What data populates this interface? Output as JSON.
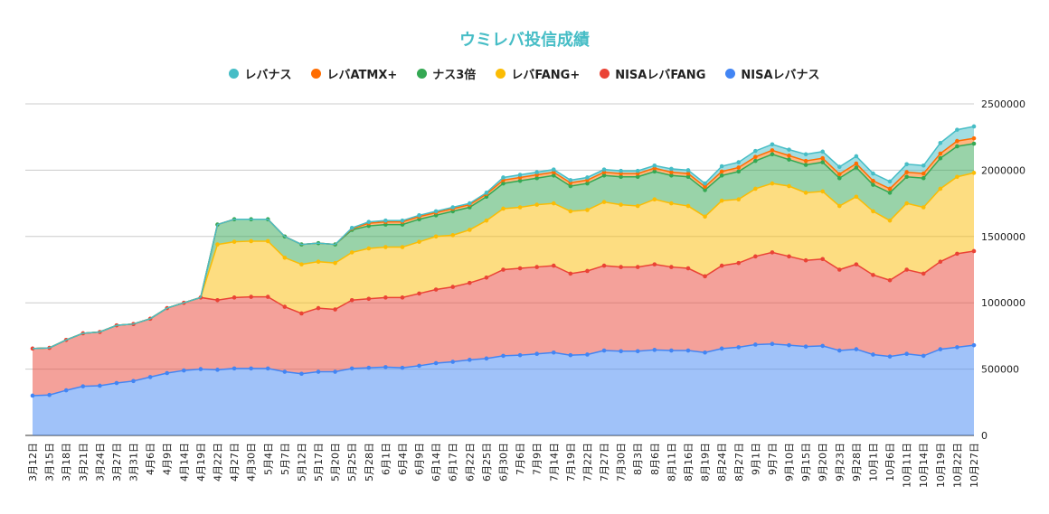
{
  "chart_data": {
    "type": "area",
    "stacked": true,
    "title": "ウミレバ投信成績",
    "legend_position": "top",
    "grid": true,
    "ylim": [
      0,
      2500000
    ],
    "yticks": [
      0,
      500000,
      1000000,
      1500000,
      2000000,
      2500000
    ],
    "ytick_labels": [
      "0",
      "500000",
      "1000000",
      "1500000",
      "2000000",
      "2500000"
    ],
    "categories": [
      "3月12日",
      "3月15日",
      "3月18日",
      "3月21日",
      "3月24日",
      "3月27日",
      "3月31日",
      "4月6日",
      "4月9日",
      "4月14日",
      "4月19日",
      "4月22日",
      "4月27日",
      "4月30日",
      "5月4日",
      "5月7日",
      "5月12日",
      "5月17日",
      "5月20日",
      "5月25日",
      "5月28日",
      "6月1日",
      "6月4日",
      "6月9日",
      "6月14日",
      "6月17日",
      "6月22日",
      "6月25日",
      "6月30日",
      "7月6日",
      "7月9日",
      "7月14日",
      "7月19日",
      "7月22日",
      "7月27日",
      "7月30日",
      "8月3日",
      "8月6日",
      "8月11日",
      "8月16日",
      "8月19日",
      "8月24日",
      "8月27日",
      "9月1日",
      "9月7日",
      "9月10日",
      "9月15日",
      "9月20日",
      "9月23日",
      "9月28日",
      "10月1日",
      "10月6日",
      "10月11日",
      "10月14日",
      "10月19日",
      "10月22日",
      "10月27日"
    ],
    "series": [
      {
        "name": "NISAレバナス",
        "color": "#4285f4",
        "values": [
          300000,
          305000,
          340000,
          370000,
          375000,
          395000,
          410000,
          440000,
          470000,
          490000,
          500000,
          495000,
          505000,
          505000,
          505000,
          480000,
          465000,
          480000,
          480000,
          505000,
          510000,
          515000,
          510000,
          525000,
          545000,
          555000,
          570000,
          580000,
          600000,
          605000,
          615000,
          625000,
          605000,
          610000,
          640000,
          635000,
          635000,
          645000,
          640000,
          640000,
          625000,
          655000,
          665000,
          685000,
          690000,
          680000,
          670000,
          675000,
          640000,
          650000,
          610000,
          595000,
          615000,
          600000,
          650000,
          665000,
          680000
        ]
      },
      {
        "name": "NISAレバFANG",
        "color": "#ea4335",
        "values": [
          355000,
          355000,
          380000,
          400000,
          405000,
          435000,
          430000,
          440000,
          490000,
          510000,
          540000,
          525000,
          535000,
          540000,
          540000,
          490000,
          455000,
          480000,
          470000,
          515000,
          520000,
          525000,
          530000,
          545000,
          555000,
          565000,
          580000,
          610000,
          650000,
          655000,
          655000,
          655000,
          615000,
          630000,
          640000,
          635000,
          635000,
          645000,
          630000,
          620000,
          575000,
          625000,
          635000,
          665000,
          690000,
          670000,
          650000,
          655000,
          610000,
          640000,
          600000,
          575000,
          635000,
          620000,
          660000,
          705000,
          710000
        ]
      },
      {
        "name": "レバFANG+",
        "color": "#fbbc04",
        "values": [
          0,
          0,
          0,
          0,
          0,
          0,
          0,
          0,
          0,
          0,
          0,
          420000,
          420000,
          420000,
          420000,
          370000,
          370000,
          350000,
          350000,
          360000,
          380000,
          380000,
          380000,
          390000,
          400000,
          390000,
          400000,
          430000,
          460000,
          460000,
          470000,
          470000,
          470000,
          460000,
          480000,
          470000,
          460000,
          490000,
          480000,
          470000,
          450000,
          490000,
          480000,
          510000,
          520000,
          530000,
          510000,
          510000,
          480000,
          510000,
          480000,
          450000,
          500000,
          500000,
          550000,
          580000,
          590000
        ]
      },
      {
        "name": "ナス3倍",
        "color": "#34a853",
        "values": [
          0,
          0,
          0,
          0,
          0,
          0,
          0,
          0,
          0,
          0,
          0,
          150000,
          170000,
          165000,
          165000,
          160000,
          150000,
          140000,
          140000,
          170000,
          170000,
          170000,
          170000,
          170000,
          160000,
          180000,
          170000,
          180000,
          190000,
          200000,
          200000,
          210000,
          190000,
          200000,
          200000,
          210000,
          220000,
          210000,
          210000,
          220000,
          200000,
          190000,
          210000,
          210000,
          220000,
          200000,
          210000,
          220000,
          210000,
          220000,
          200000,
          210000,
          200000,
          220000,
          230000,
          230000,
          220000
        ]
      },
      {
        "name": "レバATMX+",
        "color": "#ff6d01",
        "values": [
          0,
          0,
          0,
          0,
          0,
          0,
          0,
          0,
          0,
          0,
          0,
          0,
          0,
          0,
          0,
          0,
          0,
          0,
          0,
          10000,
          20000,
          20000,
          20000,
          20000,
          20000,
          20000,
          20000,
          20000,
          25000,
          25000,
          25000,
          25000,
          25000,
          25000,
          25000,
          25000,
          25000,
          25000,
          25000,
          25000,
          25000,
          30000,
          30000,
          30000,
          30000,
          30000,
          30000,
          30000,
          30000,
          30000,
          30000,
          30000,
          35000,
          35000,
          35000,
          40000,
          40000
        ]
      },
      {
        "name": "レバナス",
        "color": "#46bdc6",
        "values": [
          0,
          0,
          0,
          0,
          0,
          0,
          0,
          0,
          0,
          0,
          0,
          0,
          0,
          0,
          0,
          0,
          0,
          0,
          0,
          5000,
          10000,
          10000,
          10000,
          10000,
          10000,
          10000,
          10000,
          10000,
          20000,
          20000,
          20000,
          20000,
          20000,
          20000,
          20000,
          20000,
          20000,
          20000,
          25000,
          25000,
          25000,
          40000,
          40000,
          45000,
          45000,
          45000,
          50000,
          50000,
          55000,
          55000,
          55000,
          55000,
          60000,
          60000,
          80000,
          85000,
          90000
        ]
      }
    ]
  }
}
